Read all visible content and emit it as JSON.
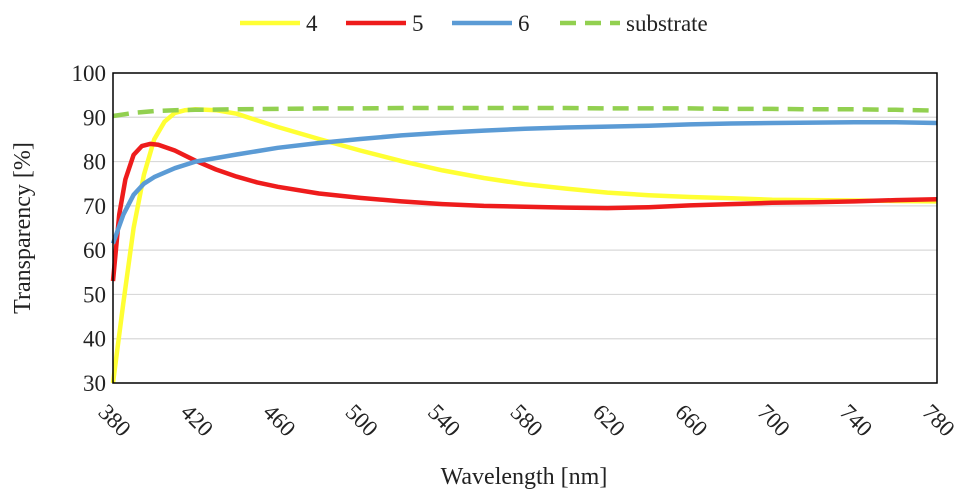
{
  "chart_data": {
    "type": "line",
    "title": "",
    "xlabel": "Wavelength [nm]",
    "ylabel": "Transparency [%]",
    "xlim": [
      380,
      780
    ],
    "ylim": [
      30,
      100
    ],
    "x_ticks": [
      380,
      420,
      460,
      500,
      540,
      580,
      620,
      660,
      700,
      740,
      780
    ],
    "y_ticks": [
      30,
      40,
      50,
      60,
      70,
      80,
      90,
      100
    ],
    "grid": "horizontal",
    "legend_position": "top",
    "series": [
      {
        "name": "4",
        "color": "#ffff33",
        "dash": "solid",
        "x": [
          380,
          385,
          390,
          395,
          400,
          405,
          410,
          415,
          420,
          430,
          440,
          450,
          460,
          480,
          500,
          520,
          540,
          560,
          580,
          600,
          620,
          640,
          660,
          680,
          700,
          720,
          740,
          760,
          780
        ],
        "y": [
          30,
          48,
          65,
          77,
          85,
          89,
          91,
          91.6,
          91.8,
          91.6,
          90.8,
          89.3,
          87.8,
          85.1,
          82.5,
          80.1,
          78.0,
          76.3,
          74.9,
          73.9,
          73.0,
          72.4,
          72.0,
          71.7,
          71.4,
          71.3,
          71.2,
          71.1,
          71.0
        ]
      },
      {
        "name": "5",
        "color": "#ee1c1c",
        "dash": "solid",
        "x": [
          380,
          383,
          386,
          390,
          394,
          398,
          402,
          410,
          420,
          430,
          440,
          450,
          460,
          480,
          500,
          520,
          540,
          560,
          580,
          600,
          620,
          640,
          660,
          680,
          700,
          720,
          740,
          760,
          780
        ],
        "y": [
          53,
          68,
          76,
          81.5,
          83.5,
          84.0,
          83.8,
          82.5,
          80.2,
          78.2,
          76.6,
          75.3,
          74.3,
          72.8,
          71.8,
          71.0,
          70.4,
          70.0,
          69.8,
          69.6,
          69.5,
          69.7,
          70.1,
          70.4,
          70.7,
          70.8,
          71.0,
          71.3,
          71.5
        ]
      },
      {
        "name": "6",
        "color": "#5b9bd5",
        "dash": "solid",
        "x": [
          380,
          385,
          390,
          395,
          400,
          410,
          420,
          440,
          460,
          480,
          500,
          520,
          540,
          560,
          580,
          600,
          620,
          640,
          660,
          680,
          700,
          720,
          740,
          760,
          780
        ],
        "y": [
          61.5,
          68,
          72.5,
          75,
          76.5,
          78.5,
          80.0,
          81.6,
          83.1,
          84.2,
          85.1,
          85.9,
          86.5,
          87.0,
          87.4,
          87.7,
          87.9,
          88.1,
          88.4,
          88.6,
          88.7,
          88.8,
          88.9,
          88.9,
          88.7
        ]
      },
      {
        "name": "substrate",
        "color": "#92d050",
        "dash": "dashed",
        "x": [
          380,
          390,
          400,
          410,
          420,
          440,
          460,
          480,
          500,
          520,
          540,
          560,
          580,
          600,
          620,
          640,
          660,
          680,
          700,
          720,
          740,
          760,
          780
        ],
        "y": [
          90.3,
          91.0,
          91.4,
          91.6,
          91.7,
          91.8,
          91.9,
          92.0,
          92.0,
          92.1,
          92.1,
          92.1,
          92.1,
          92.1,
          92.0,
          92.0,
          92.0,
          91.9,
          91.9,
          91.8,
          91.8,
          91.7,
          91.5
        ]
      }
    ]
  }
}
